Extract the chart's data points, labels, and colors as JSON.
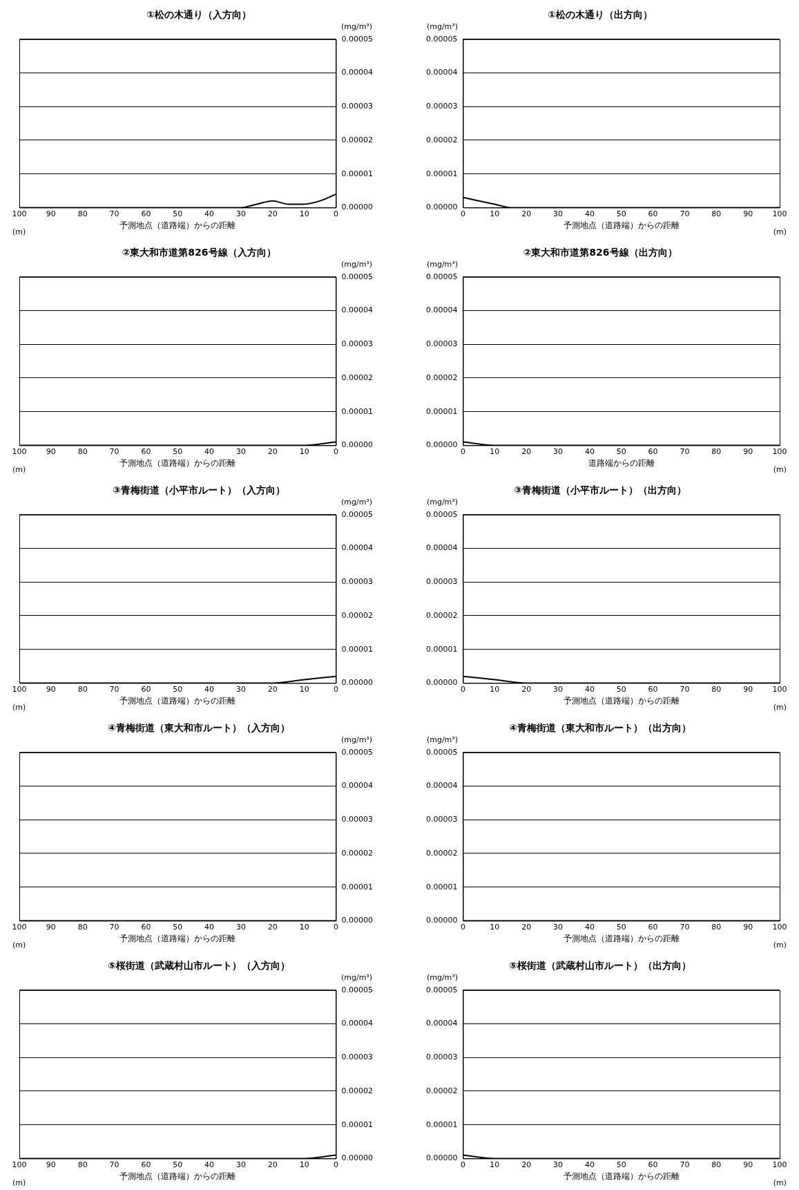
{
  "chart_data": [
    {
      "type": "line",
      "title": "①松の木通り（入方向）",
      "xlabel": "予測地点（道路端）からの距離",
      "ylabel": "(mg/m³)",
      "annotations": [
        "(m)"
      ],
      "x": [
        0,
        5,
        10,
        15,
        20,
        25,
        30,
        40,
        50,
        60,
        70,
        80,
        90,
        100
      ],
      "series": [
        {
          "color": "#000000",
          "values": [
            4e-06,
            2e-06,
            1e-06,
            1e-06,
            2e-06,
            1e-06,
            0,
            0,
            0,
            0,
            0,
            0,
            0,
            0
          ]
        }
      ],
      "xlim": [
        100,
        0
      ],
      "xticks": [
        100,
        90,
        80,
        70,
        60,
        50,
        40,
        30,
        20,
        10,
        0
      ],
      "ylim": [
        0,
        5e-05
      ],
      "yticks": [
        {
          "value": 0,
          "label": "0.00000"
        },
        {
          "value": 1e-05,
          "label": "0.00001"
        },
        {
          "value": 2e-05,
          "label": "0.00002"
        },
        {
          "value": 3e-05,
          "label": "0.00003"
        },
        {
          "value": 4e-05,
          "label": "0.00004"
        },
        {
          "value": 5e-05,
          "label": "0.00005"
        }
      ],
      "grid": "y",
      "legend": false,
      "marker": "none",
      "line_style": "solid"
    },
    {
      "type": "line",
      "title": "①松の木通り（出方向）",
      "xlabel": "予測地点（道路端）からの距離",
      "ylabel": "(mg/m³)",
      "annotations": [
        "(m)"
      ],
      "x": [
        0,
        5,
        10,
        15,
        20,
        25,
        30,
        40,
        50,
        60,
        70,
        80,
        90,
        100
      ],
      "series": [
        {
          "color": "#000000",
          "values": [
            3e-06,
            2e-06,
            1e-06,
            0,
            0,
            0,
            0,
            0,
            0,
            0,
            0,
            0,
            0,
            0
          ]
        }
      ],
      "xlim": [
        0,
        100
      ],
      "xticks": [
        0,
        10,
        20,
        30,
        40,
        50,
        60,
        70,
        80,
        90,
        100
      ],
      "ylim": [
        0,
        5e-05
      ],
      "yticks": [
        {
          "value": 0,
          "label": "0.00000"
        },
        {
          "value": 1e-05,
          "label": "0.00001"
        },
        {
          "value": 2e-05,
          "label": "0.00002"
        },
        {
          "value": 3e-05,
          "label": "0.00003"
        },
        {
          "value": 4e-05,
          "label": "0.00004"
        },
        {
          "value": 5e-05,
          "label": "0.00005"
        }
      ],
      "grid": "y",
      "legend": false,
      "marker": "none",
      "line_style": "solid"
    },
    {
      "type": "line",
      "title": "②東大和市道第826号線（入方向）",
      "xlabel": "予測地点（道路端）からの距離",
      "ylabel": "(mg/m³)",
      "annotations": [
        "(m)"
      ],
      "x": [
        0,
        10,
        20,
        30,
        40,
        50,
        60,
        70,
        80,
        90,
        100
      ],
      "series": [
        {
          "color": "#000000",
          "values": [
            1e-06,
            0,
            0,
            0,
            0,
            0,
            0,
            0,
            0,
            0,
            0
          ]
        }
      ],
      "xlim": [
        100,
        0
      ],
      "xticks": [
        100,
        90,
        80,
        70,
        60,
        50,
        40,
        30,
        20,
        10,
        0
      ],
      "ylim": [
        0,
        5e-05
      ],
      "yticks": [
        {
          "value": 0,
          "label": "0.00000"
        },
        {
          "value": 1e-05,
          "label": "0.00001"
        },
        {
          "value": 2e-05,
          "label": "0.00002"
        },
        {
          "value": 3e-05,
          "label": "0.00003"
        },
        {
          "value": 4e-05,
          "label": "0.00004"
        },
        {
          "value": 5e-05,
          "label": "0.00005"
        }
      ],
      "grid": "y",
      "legend": false,
      "marker": "none",
      "line_style": "solid"
    },
    {
      "type": "line",
      "title": "②東大和市道第826号線（出方向）",
      "xlabel": "道路端からの距離",
      "ylabel": "(mg/m³)",
      "annotations": [
        "(m)"
      ],
      "x": [
        0,
        10,
        20,
        30,
        40,
        50,
        60,
        70,
        80,
        90,
        100
      ],
      "series": [
        {
          "color": "#000000",
          "values": [
            1e-06,
            0,
            0,
            0,
            0,
            0,
            0,
            0,
            0,
            0,
            0
          ]
        }
      ],
      "xlim": [
        0,
        100
      ],
      "xticks": [
        0,
        10,
        20,
        30,
        40,
        50,
        60,
        70,
        80,
        90,
        100
      ],
      "ylim": [
        0,
        5e-05
      ],
      "yticks": [
        {
          "value": 0,
          "label": "0.00000"
        },
        {
          "value": 1e-05,
          "label": "0.00001"
        },
        {
          "value": 2e-05,
          "label": "0.00002"
        },
        {
          "value": 3e-05,
          "label": "0.00003"
        },
        {
          "value": 4e-05,
          "label": "0.00004"
        },
        {
          "value": 5e-05,
          "label": "0.00005"
        }
      ],
      "grid": "y",
      "legend": false,
      "marker": "none",
      "line_style": "solid"
    },
    {
      "type": "line",
      "title": "③青梅街道（小平市ルート）（入方向）",
      "xlabel": "予測地点（道路端）からの距離",
      "ylabel": "(mg/m³)",
      "annotations": [
        "(m)"
      ],
      "x": [
        0,
        10,
        20,
        30,
        40,
        50,
        60,
        70,
        80,
        90,
        100
      ],
      "series": [
        {
          "color": "#000000",
          "values": [
            2e-06,
            1e-06,
            0,
            0,
            0,
            0,
            0,
            0,
            0,
            0,
            0
          ]
        }
      ],
      "xlim": [
        100,
        0
      ],
      "xticks": [
        100,
        90,
        80,
        70,
        60,
        50,
        40,
        30,
        20,
        10,
        0
      ],
      "ylim": [
        0,
        5e-05
      ],
      "yticks": [
        {
          "value": 0,
          "label": "0.00000"
        },
        {
          "value": 1e-05,
          "label": "0.00001"
        },
        {
          "value": 2e-05,
          "label": "0.00002"
        },
        {
          "value": 3e-05,
          "label": "0.00003"
        },
        {
          "value": 4e-05,
          "label": "0.00004"
        },
        {
          "value": 5e-05,
          "label": "0.00005"
        }
      ],
      "grid": "y",
      "legend": false,
      "marker": "none",
      "line_style": "solid"
    },
    {
      "type": "line",
      "title": "③青梅街道（小平市ルート）（出方向）",
      "xlabel": "予測地点（道路端）からの距離",
      "ylabel": "(mg/m³)",
      "annotations": [
        "(m)"
      ],
      "x": [
        0,
        10,
        20,
        30,
        40,
        50,
        60,
        70,
        80,
        90,
        100
      ],
      "series": [
        {
          "color": "#000000",
          "values": [
            2e-06,
            1e-06,
            0,
            0,
            0,
            0,
            0,
            0,
            0,
            0,
            0
          ]
        }
      ],
      "xlim": [
        0,
        100
      ],
      "xticks": [
        0,
        10,
        20,
        30,
        40,
        50,
        60,
        70,
        80,
        90,
        100
      ],
      "ylim": [
        0,
        5e-05
      ],
      "yticks": [
        {
          "value": 0,
          "label": "0.00000"
        },
        {
          "value": 1e-05,
          "label": "0.00001"
        },
        {
          "value": 2e-05,
          "label": "0.00002"
        },
        {
          "value": 3e-05,
          "label": "0.00003"
        },
        {
          "value": 4e-05,
          "label": "0.00004"
        },
        {
          "value": 5e-05,
          "label": "0.00005"
        }
      ],
      "grid": "y",
      "legend": false,
      "marker": "none",
      "line_style": "solid"
    },
    {
      "type": "line",
      "title": "④青梅街道（東大和市ルート）（入方向）",
      "xlabel": "予測地点（道路端）からの距離",
      "ylabel": "(mg/m³)",
      "annotations": [
        "(m)"
      ],
      "x": [
        0,
        10,
        20,
        30,
        40,
        50,
        60,
        70,
        80,
        90,
        100
      ],
      "series": [
        {
          "color": "#000000",
          "values": [
            0,
            0,
            0,
            0,
            0,
            0,
            0,
            0,
            0,
            0,
            0
          ]
        }
      ],
      "xlim": [
        100,
        0
      ],
      "xticks": [
        100,
        90,
        80,
        70,
        60,
        50,
        40,
        30,
        20,
        10,
        0
      ],
      "ylim": [
        0,
        5e-05
      ],
      "yticks": [
        {
          "value": 0,
          "label": "0.00000"
        },
        {
          "value": 1e-05,
          "label": "0.00001"
        },
        {
          "value": 2e-05,
          "label": "0.00002"
        },
        {
          "value": 3e-05,
          "label": "0.00003"
        },
        {
          "value": 4e-05,
          "label": "0.00004"
        },
        {
          "value": 5e-05,
          "label": "0.00005"
        }
      ],
      "grid": "y",
      "legend": false,
      "marker": "none",
      "line_style": "solid"
    },
    {
      "type": "line",
      "title": "④青梅街道（東大和市ルート）（出方向）",
      "xlabel": "予測地点（道路端）からの距離",
      "ylabel": "(mg/m³)",
      "annotations": [
        "(m)"
      ],
      "x": [
        0,
        10,
        20,
        30,
        40,
        50,
        60,
        70,
        80,
        90,
        100
      ],
      "series": [
        {
          "color": "#000000",
          "values": [
            0,
            0,
            0,
            0,
            0,
            0,
            0,
            0,
            0,
            0,
            0
          ]
        }
      ],
      "xlim": [
        0,
        100
      ],
      "xticks": [
        0,
        10,
        20,
        30,
        40,
        50,
        60,
        70,
        80,
        90,
        100
      ],
      "ylim": [
        0,
        5e-05
      ],
      "yticks": [
        {
          "value": 0,
          "label": "0.00000"
        },
        {
          "value": 1e-05,
          "label": "0.00001"
        },
        {
          "value": 2e-05,
          "label": "0.00002"
        },
        {
          "value": 3e-05,
          "label": "0.00003"
        },
        {
          "value": 4e-05,
          "label": "0.00004"
        },
        {
          "value": 5e-05,
          "label": "0.00005"
        }
      ],
      "grid": "y",
      "legend": false,
      "marker": "none",
      "line_style": "solid"
    },
    {
      "type": "line",
      "title": "⑤桜街道（武蔵村山市ルート）（入方向）",
      "xlabel": "予測地点（道路端）からの距離",
      "ylabel": "(mg/m³)",
      "annotations": [
        "(m)"
      ],
      "x": [
        0,
        10,
        20,
        30,
        40,
        50,
        60,
        70,
        80,
        90,
        100
      ],
      "series": [
        {
          "color": "#000000",
          "values": [
            1e-06,
            0,
            0,
            0,
            0,
            0,
            0,
            0,
            0,
            0,
            0
          ]
        }
      ],
      "xlim": [
        100,
        0
      ],
      "xticks": [
        100,
        90,
        80,
        70,
        60,
        50,
        40,
        30,
        20,
        10,
        0
      ],
      "ylim": [
        0,
        5e-05
      ],
      "yticks": [
        {
          "value": 0,
          "label": "0.00000"
        },
        {
          "value": 1e-05,
          "label": "0.00001"
        },
        {
          "value": 2e-05,
          "label": "0.00002"
        },
        {
          "value": 3e-05,
          "label": "0.00003"
        },
        {
          "value": 4e-05,
          "label": "0.00004"
        },
        {
          "value": 5e-05,
          "label": "0.00005"
        }
      ],
      "grid": "y",
      "legend": false,
      "marker": "none",
      "line_style": "solid"
    },
    {
      "type": "line",
      "title": "⑤桜街道（武蔵村山市ルート）（出方向）",
      "xlabel": "予測地点（道路端）からの距離",
      "ylabel": "(mg/m³)",
      "annotations": [
        "(m)"
      ],
      "x": [
        0,
        10,
        20,
        30,
        40,
        50,
        60,
        70,
        80,
        90,
        100
      ],
      "series": [
        {
          "color": "#000000",
          "values": [
            1e-06,
            0,
            0,
            0,
            0,
            0,
            0,
            0,
            0,
            0,
            0
          ]
        }
      ],
      "xlim": [
        0,
        100
      ],
      "xticks": [
        0,
        10,
        20,
        30,
        40,
        50,
        60,
        70,
        80,
        90,
        100
      ],
      "ylim": [
        0,
        5e-05
      ],
      "yticks": [
        {
          "value": 0,
          "label": "0.00000"
        },
        {
          "value": 1e-05,
          "label": "0.00001"
        },
        {
          "value": 2e-05,
          "label": "0.00002"
        },
        {
          "value": 3e-05,
          "label": "0.00003"
        },
        {
          "value": 4e-05,
          "label": "0.00004"
        },
        {
          "value": 5e-05,
          "label": "0.00005"
        }
      ],
      "grid": "y",
      "legend": false,
      "marker": "none",
      "line_style": "solid"
    }
  ]
}
